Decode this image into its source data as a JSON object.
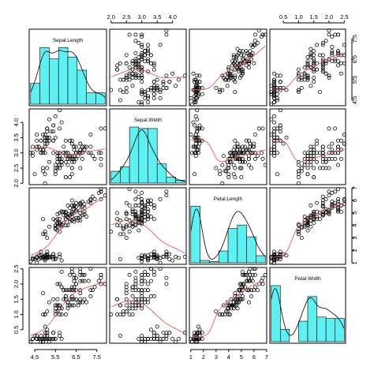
{
  "chart_data": {
    "type": "scatter",
    "title": "",
    "variables": [
      "Sepal.Length",
      "Sepal.Width",
      "Petal.Length",
      "Petal.Width"
    ],
    "ranges": {
      "Sepal.Length": [
        4.3,
        7.9
      ],
      "Sepal.Width": [
        2.0,
        4.4
      ],
      "Petal.Length": [
        1.0,
        6.9
      ],
      "Petal.Width": [
        0.1,
        2.5
      ]
    },
    "ticks": {
      "Sepal.Length": [
        "4.5",
        "5.5",
        "6.5",
        "7.5"
      ],
      "Sepal.Width": [
        "2.0",
        "2.5",
        "3.0",
        "3.5",
        "4.0"
      ],
      "Petal.Length": [
        "1",
        "2",
        "3",
        "4",
        "5",
        "6",
        "7"
      ],
      "Petal.Width": [
        "0.5",
        "1.0",
        "1.5",
        "2.0",
        "2.5"
      ]
    },
    "tick_values": {
      "Sepal.Length": [
        4.5,
        5.5,
        6.5,
        7.5
      ],
      "Sepal.Width": [
        2.0,
        2.5,
        3.0,
        3.5,
        4.0
      ],
      "Petal.Length": [
        1,
        2,
        3,
        4,
        5,
        6,
        7
      ],
      "Petal.Width": [
        0.5,
        1.0,
        1.5,
        2.0,
        2.5
      ]
    },
    "histogram_color": "#5ef1f2",
    "smooth_color": "#e8585e",
    "diagonal": "histogram with density curve",
    "off_diagonal": "scatter with lowess smooth",
    "points": [
      [
        5.1,
        3.5,
        1.4,
        0.2
      ],
      [
        4.9,
        3.0,
        1.4,
        0.2
      ],
      [
        4.7,
        3.2,
        1.3,
        0.2
      ],
      [
        4.6,
        3.1,
        1.5,
        0.2
      ],
      [
        5.0,
        3.6,
        1.4,
        0.2
      ],
      [
        5.4,
        3.9,
        1.7,
        0.4
      ],
      [
        4.6,
        3.4,
        1.4,
        0.3
      ],
      [
        5.0,
        3.4,
        1.5,
        0.2
      ],
      [
        4.4,
        2.9,
        1.4,
        0.2
      ],
      [
        4.9,
        3.1,
        1.5,
        0.1
      ],
      [
        5.4,
        3.7,
        1.5,
        0.2
      ],
      [
        4.8,
        3.4,
        1.6,
        0.2
      ],
      [
        4.8,
        3.0,
        1.4,
        0.1
      ],
      [
        4.3,
        3.0,
        1.1,
        0.1
      ],
      [
        5.8,
        4.0,
        1.2,
        0.2
      ],
      [
        5.7,
        4.4,
        1.5,
        0.4
      ],
      [
        5.4,
        3.9,
        1.3,
        0.4
      ],
      [
        5.1,
        3.5,
        1.4,
        0.3
      ],
      [
        5.7,
        3.8,
        1.7,
        0.3
      ],
      [
        5.1,
        3.8,
        1.5,
        0.3
      ],
      [
        5.4,
        3.4,
        1.7,
        0.2
      ],
      [
        5.1,
        3.7,
        1.5,
        0.4
      ],
      [
        4.6,
        3.6,
        1.0,
        0.2
      ],
      [
        5.1,
        3.3,
        1.7,
        0.5
      ],
      [
        4.8,
        3.4,
        1.9,
        0.2
      ],
      [
        5.0,
        3.0,
        1.6,
        0.2
      ],
      [
        5.0,
        3.4,
        1.6,
        0.4
      ],
      [
        5.2,
        3.5,
        1.5,
        0.2
      ],
      [
        5.2,
        3.4,
        1.4,
        0.2
      ],
      [
        4.7,
        3.2,
        1.6,
        0.2
      ],
      [
        4.8,
        3.1,
        1.6,
        0.2
      ],
      [
        5.4,
        3.4,
        1.5,
        0.4
      ],
      [
        5.2,
        4.1,
        1.5,
        0.1
      ],
      [
        5.5,
        4.2,
        1.4,
        0.2
      ],
      [
        4.9,
        3.1,
        1.5,
        0.2
      ],
      [
        5.0,
        3.2,
        1.2,
        0.2
      ],
      [
        5.5,
        3.5,
        1.3,
        0.2
      ],
      [
        4.9,
        3.6,
        1.4,
        0.1
      ],
      [
        4.4,
        3.0,
        1.3,
        0.2
      ],
      [
        5.1,
        3.4,
        1.5,
        0.2
      ],
      [
        5.0,
        3.5,
        1.3,
        0.3
      ],
      [
        4.5,
        2.3,
        1.3,
        0.3
      ],
      [
        4.4,
        3.2,
        1.3,
        0.2
      ],
      [
        5.0,
        3.5,
        1.6,
        0.6
      ],
      [
        5.1,
        3.8,
        1.9,
        0.4
      ],
      [
        4.8,
        3.0,
        1.4,
        0.3
      ],
      [
        5.1,
        3.8,
        1.6,
        0.2
      ],
      [
        4.6,
        3.2,
        1.4,
        0.2
      ],
      [
        5.3,
        3.7,
        1.5,
        0.2
      ],
      [
        5.0,
        3.3,
        1.4,
        0.2
      ],
      [
        7.0,
        3.2,
        4.7,
        1.4
      ],
      [
        6.4,
        3.2,
        4.5,
        1.5
      ],
      [
        6.9,
        3.1,
        4.9,
        1.5
      ],
      [
        5.5,
        2.3,
        4.0,
        1.3
      ],
      [
        6.5,
        2.8,
        4.6,
        1.5
      ],
      [
        5.7,
        2.8,
        4.5,
        1.3
      ],
      [
        6.3,
        3.3,
        4.7,
        1.6
      ],
      [
        4.9,
        2.4,
        3.3,
        1.0
      ],
      [
        6.6,
        2.9,
        4.6,
        1.3
      ],
      [
        5.2,
        2.7,
        3.9,
        1.4
      ],
      [
        5.0,
        2.0,
        3.5,
        1.0
      ],
      [
        5.9,
        3.0,
        4.2,
        1.5
      ],
      [
        6.0,
        2.2,
        4.0,
        1.0
      ],
      [
        6.1,
        2.9,
        4.7,
        1.4
      ],
      [
        5.6,
        2.9,
        3.6,
        1.3
      ],
      [
        6.7,
        3.1,
        4.4,
        1.4
      ],
      [
        5.6,
        3.0,
        4.5,
        1.5
      ],
      [
        5.8,
        2.7,
        4.1,
        1.0
      ],
      [
        6.2,
        2.2,
        4.5,
        1.5
      ],
      [
        5.6,
        2.5,
        3.9,
        1.1
      ],
      [
        5.9,
        3.2,
        4.8,
        1.8
      ],
      [
        6.1,
        2.8,
        4.0,
        1.3
      ],
      [
        6.3,
        2.5,
        4.9,
        1.5
      ],
      [
        6.1,
        2.8,
        4.7,
        1.2
      ],
      [
        6.4,
        2.9,
        4.3,
        1.3
      ],
      [
        6.6,
        3.0,
        4.4,
        1.4
      ],
      [
        6.8,
        2.8,
        4.8,
        1.4
      ],
      [
        6.7,
        3.0,
        5.0,
        1.7
      ],
      [
        6.0,
        2.9,
        4.5,
        1.5
      ],
      [
        5.7,
        2.6,
        3.5,
        1.0
      ],
      [
        5.5,
        2.4,
        3.8,
        1.1
      ],
      [
        5.5,
        2.4,
        3.7,
        1.0
      ],
      [
        5.8,
        2.7,
        3.9,
        1.2
      ],
      [
        6.0,
        2.7,
        5.1,
        1.6
      ],
      [
        5.4,
        3.0,
        4.5,
        1.5
      ],
      [
        6.0,
        3.4,
        4.5,
        1.6
      ],
      [
        6.7,
        3.1,
        4.7,
        1.5
      ],
      [
        6.3,
        2.3,
        4.4,
        1.3
      ],
      [
        5.6,
        3.0,
        4.1,
        1.3
      ],
      [
        5.5,
        2.5,
        4.0,
        1.3
      ],
      [
        5.5,
        2.6,
        4.4,
        1.2
      ],
      [
        6.1,
        3.0,
        4.6,
        1.4
      ],
      [
        5.8,
        2.6,
        4.0,
        1.2
      ],
      [
        5.0,
        2.3,
        3.3,
        1.0
      ],
      [
        5.6,
        2.7,
        4.2,
        1.3
      ],
      [
        5.7,
        3.0,
        4.2,
        1.2
      ],
      [
        5.7,
        2.9,
        4.2,
        1.3
      ],
      [
        6.2,
        2.9,
        4.3,
        1.3
      ],
      [
        5.1,
        2.5,
        3.0,
        1.1
      ],
      [
        5.7,
        2.8,
        4.1,
        1.3
      ],
      [
        6.3,
        3.3,
        6.0,
        2.5
      ],
      [
        5.8,
        2.7,
        5.1,
        1.9
      ],
      [
        7.1,
        3.0,
        5.9,
        2.1
      ],
      [
        6.3,
        2.9,
        5.6,
        1.8
      ],
      [
        6.5,
        3.0,
        5.8,
        2.2
      ],
      [
        7.6,
        3.0,
        6.6,
        2.1
      ],
      [
        4.9,
        2.5,
        4.5,
        1.7
      ],
      [
        7.3,
        2.9,
        6.3,
        1.8
      ],
      [
        6.7,
        2.5,
        5.8,
        1.8
      ],
      [
        7.2,
        3.6,
        6.1,
        2.5
      ],
      [
        6.5,
        3.2,
        5.1,
        2.0
      ],
      [
        6.4,
        2.7,
        5.3,
        1.9
      ],
      [
        6.8,
        3.0,
        5.5,
        2.1
      ],
      [
        5.7,
        2.5,
        5.0,
        2.0
      ],
      [
        5.8,
        2.8,
        5.1,
        2.4
      ],
      [
        6.4,
        3.2,
        5.3,
        2.3
      ],
      [
        6.5,
        3.0,
        5.5,
        1.8
      ],
      [
        7.7,
        3.8,
        6.7,
        2.2
      ],
      [
        7.7,
        2.6,
        6.9,
        2.3
      ],
      [
        6.0,
        2.2,
        5.0,
        1.5
      ],
      [
        6.9,
        3.2,
        5.7,
        2.3
      ],
      [
        5.6,
        2.8,
        4.9,
        2.0
      ],
      [
        7.7,
        2.8,
        6.7,
        2.0
      ],
      [
        6.3,
        2.7,
        4.9,
        1.8
      ],
      [
        6.7,
        3.3,
        5.7,
        2.1
      ],
      [
        7.2,
        3.2,
        6.0,
        1.8
      ],
      [
        6.2,
        2.8,
        4.8,
        1.8
      ],
      [
        6.1,
        3.0,
        4.9,
        1.8
      ],
      [
        6.4,
        2.8,
        5.6,
        2.1
      ],
      [
        7.2,
        3.0,
        5.8,
        1.6
      ],
      [
        7.4,
        2.8,
        6.1,
        1.9
      ],
      [
        7.9,
        3.8,
        6.4,
        2.0
      ],
      [
        6.4,
        2.8,
        5.6,
        2.2
      ],
      [
        6.3,
        2.8,
        5.1,
        1.5
      ],
      [
        6.1,
        2.6,
        5.6,
        1.4
      ],
      [
        7.7,
        3.0,
        6.1,
        2.3
      ],
      [
        6.3,
        3.4,
        5.6,
        2.4
      ],
      [
        6.4,
        3.1,
        5.5,
        1.8
      ],
      [
        6.0,
        3.0,
        4.8,
        1.8
      ],
      [
        6.9,
        3.1,
        5.4,
        2.1
      ],
      [
        6.7,
        3.1,
        5.6,
        2.4
      ],
      [
        6.9,
        3.1,
        5.1,
        2.3
      ],
      [
        5.8,
        2.7,
        5.1,
        1.9
      ],
      [
        6.8,
        3.2,
        5.9,
        2.3
      ],
      [
        6.7,
        3.3,
        5.7,
        2.5
      ],
      [
        6.7,
        3.0,
        5.2,
        2.3
      ],
      [
        6.3,
        2.5,
        5.0,
        1.9
      ],
      [
        6.5,
        3.0,
        5.2,
        2.0
      ],
      [
        6.2,
        3.4,
        5.4,
        2.3
      ],
      [
        5.9,
        3.0,
        5.1,
        1.8
      ]
    ]
  }
}
